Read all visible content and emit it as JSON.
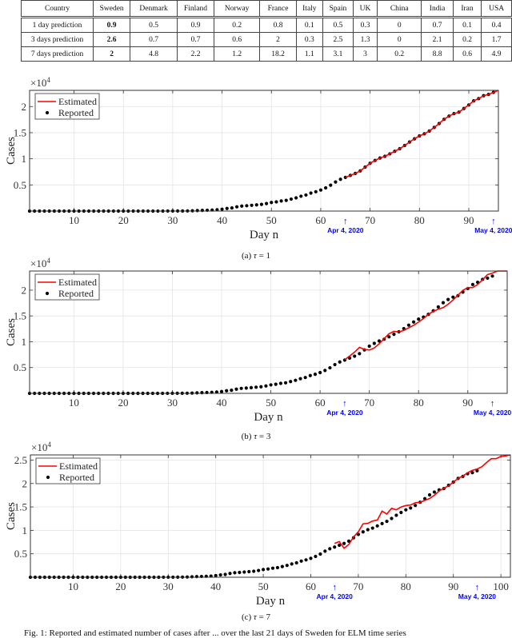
{
  "table": {
    "header": [
      "Country",
      "Sweden",
      "Denmark",
      "Finland",
      "Norway",
      "France",
      "Italy",
      "Spain",
      "UK",
      "China",
      "India",
      "Iran",
      "USA"
    ],
    "rows": [
      [
        "1 day prediction",
        "0.9",
        "0.5",
        "0.9",
        "0.2",
        "0.8",
        "0.1",
        "0.5",
        "0.3",
        "0",
        "0.7",
        "0.1",
        "0.4"
      ],
      [
        "3 days prediction",
        "2.6",
        "0.7",
        "0.7",
        "0.6",
        "2",
        "0.3",
        "2.5",
        "1.3",
        "0",
        "2.1",
        "0.2",
        "1.7"
      ],
      [
        "7 days prediction",
        "2",
        "4.8",
        "2.2",
        "1.2",
        "18.2",
        "1.1",
        "3.1",
        "3",
        "0.2",
        "8.8",
        "0.6",
        "4.9"
      ]
    ],
    "bold_column": "Sweden"
  },
  "captions": [
    {
      "prefix": "(a) ",
      "sym": "τ",
      "rest": " = 1"
    },
    {
      "prefix": "(b) ",
      "sym": "τ",
      "rest": " = 3"
    },
    {
      "prefix": "(c) ",
      "sym": "τ",
      "rest": " = 7"
    }
  ],
  "figure_caption": "Fig. 1: Reported and estimated number of cases after ... over the last 21 days of Sweden for ELM time series",
  "reported_cases": [
    1,
    1,
    1,
    1,
    1,
    1,
    1,
    1,
    1,
    1,
    1,
    1,
    1,
    1,
    1,
    1,
    1,
    1,
    1,
    1,
    1,
    1,
    1,
    1,
    1,
    1,
    2,
    7,
    12,
    13,
    14,
    15,
    30,
    52,
    94,
    137,
    161,
    203,
    248,
    355,
    500,
    599,
    814,
    961,
    1022,
    1103,
    1190,
    1279,
    1439,
    1639,
    1763,
    1934,
    2046,
    2286,
    2526,
    2840,
    3069,
    3447,
    3700,
    4028,
    4435,
    4947,
    5568,
    6078,
    6443,
    6830,
    7206,
    7693,
    8419,
    9141,
    9685,
    10151,
    10483,
    10948,
    11445,
    11927,
    12540,
    13216,
    13822,
    14385,
    14777,
    15322,
    16004,
    16755,
    17567,
    18177,
    18640,
    18926,
    19621,
    20302,
    21092,
    21520,
    22082,
    22317,
    22721
  ],
  "chart_data": [
    {
      "type": "line",
      "xlabel": "Day n",
      "ylabel": "Cases",
      "y_exponent_label": "×10",
      "y_exponent": "4",
      "xlim": [
        1,
        96
      ],
      "ylim": [
        0,
        23100
      ],
      "xticks": [
        10,
        20,
        30,
        40,
        50,
        60,
        70,
        80,
        90
      ],
      "xtick_labels": [
        "10",
        "20",
        "30",
        "40",
        "50",
        "60",
        "70",
        "80",
        "90"
      ],
      "yticks": [
        5000,
        10000,
        15000,
        20000
      ],
      "ytick_labels": [
        "0.5",
        "1",
        "1.5",
        "2"
      ],
      "grid": true,
      "legend_placement": "top-left",
      "legend": [
        "Estimated",
        "Reported"
      ],
      "colors": {
        "estimated": "#ff0000",
        "reported": "#000000",
        "annotation": "#0000ff"
      },
      "annotations": [
        {
          "x": 65,
          "arrow": "↑",
          "text": "Apr 4, 2020"
        },
        {
          "x": 95,
          "arrow": "↑",
          "text": "May 4, 2020"
        }
      ],
      "estimated": {
        "x_start": 65,
        "values": [
          6443,
          6830,
          7206,
          7693,
          8419,
          9141,
          9685,
          10151,
          10483,
          10948,
          11445,
          11927,
          12540,
          13216,
          13822,
          14385,
          14777,
          15322,
          16004,
          16755,
          17567,
          18177,
          18640,
          18926,
          19621,
          20302,
          21092,
          21520,
          22082,
          22317,
          22721,
          23100
        ]
      }
    },
    {
      "type": "line",
      "xlabel": "Day n",
      "ylabel": "Cases",
      "y_exponent_label": "×10",
      "y_exponent": "4",
      "xlim": [
        1,
        98
      ],
      "ylim": [
        0,
        23700
      ],
      "xticks": [
        10,
        20,
        30,
        40,
        50,
        60,
        70,
        80,
        90
      ],
      "xtick_labels": [
        "10",
        "20",
        "30",
        "40",
        "50",
        "60",
        "70",
        "80",
        "90"
      ],
      "yticks": [
        5000,
        10000,
        15000,
        20000
      ],
      "ytick_labels": [
        "0.5",
        "1",
        "1.5",
        "2"
      ],
      "grid": true,
      "legend_placement": "top-left",
      "legend": [
        "Estimated",
        "Reported"
      ],
      "colors": {
        "estimated": "#ff0000",
        "reported": "#000000",
        "annotation": "#0000ff"
      },
      "annotations": [
        {
          "x": 65,
          "arrow": "↑",
          "text": "Apr 4, 2020"
        },
        {
          "x": 95,
          "arrow": "↑",
          "text": "May 4, 2020"
        }
      ],
      "estimated": {
        "x_start": 65,
        "values": [
          6500,
          7250,
          8000,
          8900,
          8500,
          8400,
          8800,
          9600,
          10600,
          11550,
          12000,
          11900,
          12200,
          12700,
          13200,
          13800,
          14500,
          15300,
          15900,
          16300,
          16600,
          17250,
          18100,
          19000,
          19950,
          20500,
          20500,
          21100,
          22000,
          23000,
          23300,
          23700,
          23700,
          23700
        ]
      }
    },
    {
      "type": "line",
      "xlabel": "Day n",
      "ylabel": "Cases",
      "y_exponent_label": "×10",
      "y_exponent": "4",
      "xlim": [
        1,
        102
      ],
      "ylim": [
        0,
        26100
      ],
      "xticks": [
        10,
        20,
        30,
        40,
        50,
        60,
        70,
        80,
        90,
        100
      ],
      "xtick_labels": [
        "10",
        "20",
        "30",
        "40",
        "50",
        "60",
        "70",
        "80",
        "90",
        "100"
      ],
      "yticks": [
        5000,
        10000,
        15000,
        20000,
        25000
      ],
      "ytick_labels": [
        "0.5",
        "1",
        "1.5",
        "2",
        "2.5"
      ],
      "grid": true,
      "legend_placement": "top-left",
      "legend": [
        "Estimated",
        "Reported"
      ],
      "colors": {
        "estimated": "#ff0000",
        "reported": "#000000",
        "annotation": "#0000ff"
      },
      "annotations": [
        {
          "x": 65,
          "arrow": "↑",
          "text": "Apr 4, 2020"
        },
        {
          "x": 95,
          "arrow": "↑",
          "text": "May 4, 2020"
        }
      ],
      "estimated": {
        "x_start": 65,
        "values": [
          7200,
          7600,
          6200,
          7000,
          8600,
          9700,
          11400,
          11500,
          12000,
          12200,
          14100,
          13500,
          14700,
          14400,
          15000,
          15300,
          15400,
          15900,
          16000,
          16400,
          16800,
          17500,
          18400,
          19000,
          19500,
          20300,
          21100,
          21600,
          22300,
          22800,
          23100,
          23600,
          24500,
          25300,
          25300,
          25800,
          25900,
          26100
        ]
      }
    }
  ]
}
